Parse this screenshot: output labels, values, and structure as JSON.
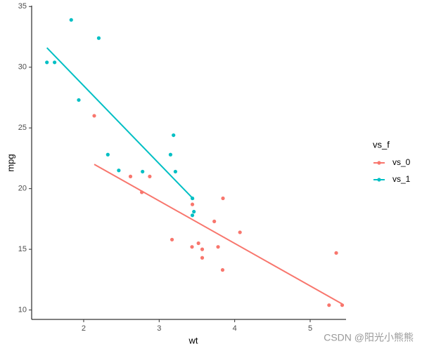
{
  "chart_data": {
    "type": "scatter",
    "x_label": "wt",
    "y_label": "mpg",
    "legend_title": "vs_f",
    "legend_position": "right",
    "watermark": "CSDN @阳光小熊熊",
    "xlim": [
      1.311,
      5.475
    ],
    "ylim": [
      9.225,
      35.075
    ],
    "xticks": [
      2,
      3,
      4,
      5
    ],
    "yticks": [
      10,
      15,
      20,
      25,
      30,
      35
    ],
    "grid": false,
    "series": [
      {
        "name": "vs_0",
        "color": "#F8766D",
        "x": [
          2.62,
          2.875,
          3.44,
          3.57,
          4.07,
          3.73,
          3.78,
          5.25,
          5.424,
          5.345,
          3.52,
          3.435,
          3.84,
          3.845,
          2.14,
          3.17,
          2.77,
          3.57
        ],
        "values": [
          21.0,
          21.0,
          18.7,
          14.3,
          16.4,
          17.3,
          15.2,
          10.4,
          10.4,
          14.7,
          15.5,
          15.2,
          13.3,
          19.2,
          26.0,
          15.8,
          19.7,
          15.0
        ],
        "fit": {
          "x": [
            2.14,
            5.424
          ],
          "values": [
            22.0,
            10.5
          ]
        }
      },
      {
        "name": "vs_1",
        "color": "#00BFC4",
        "x": [
          2.32,
          3.215,
          3.46,
          3.19,
          3.15,
          3.44,
          3.44,
          2.2,
          1.615,
          1.835,
          2.465,
          1.935,
          1.513,
          2.78
        ],
        "values": [
          22.8,
          21.4,
          18.1,
          24.4,
          22.8,
          19.2,
          17.8,
          32.4,
          30.4,
          33.9,
          21.5,
          27.3,
          30.4,
          21.4
        ],
        "fit": {
          "x": [
            1.513,
            3.46
          ],
          "values": [
            31.6,
            19.1
          ]
        }
      }
    ]
  }
}
